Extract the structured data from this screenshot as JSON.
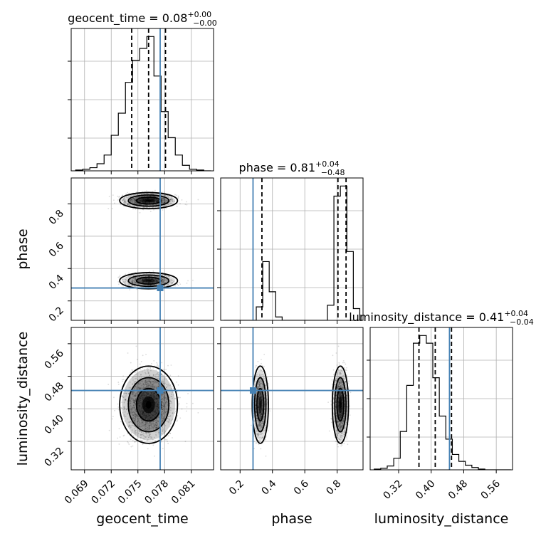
{
  "chart_data": {
    "type": "corner",
    "truth_color": "#4682b4",
    "parameters": [
      "geocent_time",
      "phase",
      "luminosity_distance"
    ],
    "truths": {
      "geocent_time": 0.0775,
      "phase": 0.28,
      "luminosity_distance": 0.445
    },
    "panels": [
      {
        "id": "geocent_time",
        "title": {
          "name": "geocent_time",
          "value": "0.08",
          "plus": "+0.00",
          "minus": "−0.00"
        },
        "xlim": [
          0.0675,
          0.0835
        ],
        "quantiles": [
          0.0743,
          0.0762,
          0.0781
        ],
        "hist": {
          "edges_start": 0.068,
          "bin": 0.0008,
          "counts": [
            1,
            2,
            4,
            9,
            20,
            45,
            73,
            112,
            140,
            155,
            170,
            120,
            75,
            42,
            20,
            7,
            2,
            1,
            0
          ]
        }
      },
      {
        "id": "phase",
        "title": {
          "name": "phase",
          "value": "0.81",
          "plus": "+0.04",
          "minus": "−0.48"
        },
        "xlim": [
          0.08,
          0.96
        ],
        "quantiles": [
          0.335,
          0.805,
          0.855
        ],
        "hist": {
          "edges_start": 0.1,
          "bin": 0.04,
          "counts": [
            0,
            0,
            0,
            0,
            0,
            16,
            70,
            34,
            4,
            0,
            0,
            0,
            0,
            0,
            0,
            0,
            18,
            148,
            160,
            82,
            14,
            0
          ]
        }
      },
      {
        "id": "luminosity_distance",
        "title": {
          "name": "luminosity_distance",
          "value": "0.41",
          "plus": "+0.04",
          "minus": "−0.04"
        },
        "xlim": [
          0.25,
          0.6
        ],
        "quantiles": [
          0.37,
          0.41,
          0.45
        ],
        "hist": {
          "edges_start": 0.26,
          "bin": 0.016,
          "counts": [
            1,
            2,
            5,
            15,
            50,
            110,
            165,
            175,
            165,
            120,
            70,
            40,
            20,
            11,
            6,
            3,
            1,
            0,
            0,
            0,
            0
          ]
        }
      }
    ],
    "axes": {
      "geocent_time": {
        "label": "geocent_time",
        "ticks": [
          "0.069",
          "0.072",
          "0.075",
          "0.078",
          "0.081"
        ],
        "tick_values": [
          0.069,
          0.072,
          0.075,
          0.078,
          0.081
        ]
      },
      "phase": {
        "label": "phase",
        "ticks": [
          "0.2",
          "0.4",
          "0.6",
          "0.8"
        ],
        "tick_values": [
          0.2,
          0.4,
          0.6,
          0.8
        ],
        "lim": [
          0.08,
          0.96
        ]
      },
      "luminosity_distance": {
        "label": "luminosity_distance",
        "ticks": [
          "0.32",
          "0.40",
          "0.48",
          "0.56"
        ],
        "tick_values": [
          0.32,
          0.4,
          0.48,
          0.56
        ],
        "lim": [
          0.25,
          0.6
        ]
      }
    },
    "modes": {
      "geocent_time": {
        "mu": 0.0762,
        "sd": 0.0013
      },
      "phase": [
        {
          "mu": 0.82,
          "sd": 0.02,
          "w": 0.62
        },
        {
          "mu": 0.325,
          "sd": 0.02,
          "w": 0.38
        }
      ],
      "luminosity_distance": {
        "mu": 0.41,
        "sd": 0.038
      }
    },
    "grid": true
  }
}
